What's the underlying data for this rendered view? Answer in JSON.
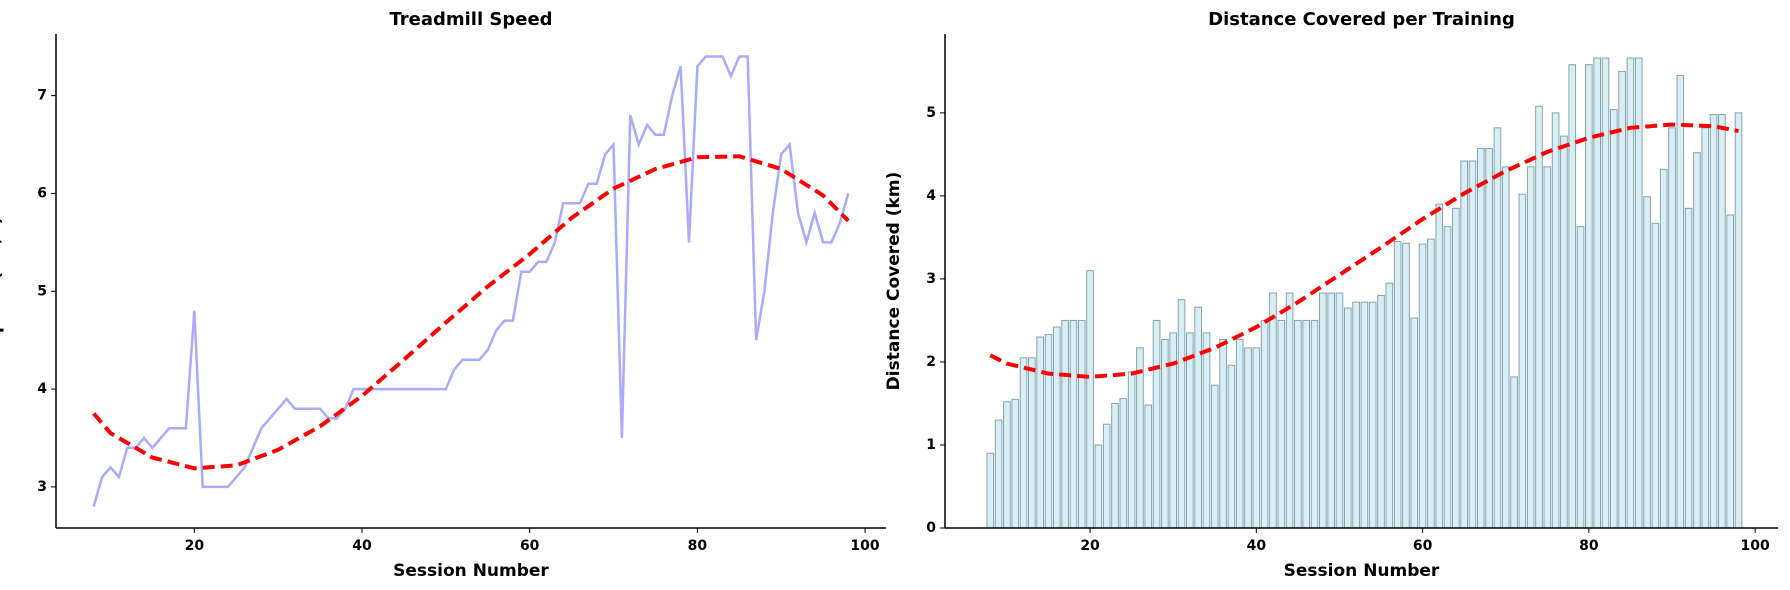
{
  "chart_data": [
    {
      "type": "line",
      "title": "Treadmill Speed",
      "xlabel": "Session Number",
      "ylabel": "Speed (km/h)",
      "x": [
        8,
        9,
        10,
        11,
        12,
        13,
        14,
        15,
        16,
        17,
        18,
        19,
        20,
        21,
        22,
        23,
        24,
        25,
        26,
        27,
        28,
        29,
        30,
        31,
        32,
        33,
        34,
        35,
        36,
        37,
        38,
        39,
        40,
        41,
        42,
        43,
        44,
        45,
        46,
        47,
        48,
        49,
        50,
        51,
        52,
        53,
        54,
        55,
        56,
        57,
        58,
        59,
        60,
        61,
        62,
        63,
        64,
        65,
        66,
        67,
        68,
        69,
        70,
        71,
        72,
        73,
        74,
        75,
        76,
        77,
        78,
        79,
        80,
        81,
        82,
        83,
        84,
        85,
        86,
        87,
        88,
        89,
        90,
        91,
        92,
        93,
        94,
        95,
        96,
        97,
        98
      ],
      "series": [
        {
          "color": "#aaaaff",
          "values": [
            2.8,
            3.1,
            3.2,
            3.1,
            3.4,
            3.4,
            3.5,
            3.4,
            3.5,
            3.6,
            3.6,
            3.6,
            4.8,
            3.0,
            3.0,
            3.0,
            3.0,
            3.1,
            3.2,
            3.4,
            3.6,
            3.7,
            3.8,
            3.9,
            3.8,
            3.8,
            3.8,
            3.8,
            3.7,
            3.7,
            3.8,
            4.0,
            4.0,
            4.0,
            4.0,
            4.0,
            4.0,
            4.0,
            4.0,
            4.0,
            4.0,
            4.0,
            4.0,
            4.2,
            4.3,
            4.3,
            4.3,
            4.4,
            4.6,
            4.7,
            4.7,
            5.2,
            5.2,
            5.3,
            5.3,
            5.5,
            5.9,
            5.9,
            5.9,
            6.1,
            6.1,
            6.4,
            6.5,
            3.5,
            6.8,
            6.5,
            6.7,
            6.6,
            6.6,
            7.0,
            7.3,
            5.5,
            7.3,
            7.4,
            7.4,
            7.4,
            7.2,
            7.4,
            7.4,
            4.5,
            5.0,
            5.8,
            6.4,
            6.5,
            5.8,
            5.5,
            5.8,
            5.5,
            5.5,
            5.7,
            6.0
          ]
        }
      ],
      "trend": {
        "color": "#ff0000",
        "x": [
          8,
          10,
          15,
          20,
          25,
          30,
          35,
          40,
          45,
          50,
          55,
          60,
          65,
          70,
          75,
          80,
          85,
          90,
          95,
          98
        ],
        "values": [
          3.75,
          3.55,
          3.3,
          3.19,
          3.22,
          3.38,
          3.62,
          3.93,
          4.3,
          4.68,
          5.05,
          5.38,
          5.75,
          6.05,
          6.25,
          6.37,
          6.38,
          6.25,
          5.98,
          5.72
        ]
      },
      "xlim": [
        3.5,
        102.5
      ],
      "ylim": [
        2.58,
        7.63
      ],
      "xticks": [
        20,
        40,
        60,
        80,
        100
      ],
      "yticks": [
        3,
        4,
        5,
        6,
        7
      ]
    },
    {
      "type": "bar",
      "title": "Distance Covered per Training",
      "xlabel": "Session Number",
      "ylabel": "Distance Covered (km)",
      "x": [
        8,
        9,
        10,
        11,
        12,
        13,
        14,
        15,
        16,
        17,
        18,
        19,
        20,
        21,
        22,
        23,
        24,
        25,
        26,
        27,
        28,
        29,
        30,
        31,
        32,
        33,
        34,
        35,
        36,
        37,
        38,
        39,
        40,
        41,
        42,
        43,
        44,
        45,
        46,
        47,
        48,
        49,
        50,
        51,
        52,
        53,
        54,
        55,
        56,
        57,
        58,
        59,
        60,
        61,
        62,
        63,
        64,
        65,
        66,
        67,
        68,
        69,
        70,
        71,
        72,
        73,
        74,
        75,
        76,
        77,
        78,
        79,
        80,
        81,
        82,
        83,
        84,
        85,
        86,
        87,
        88,
        89,
        90,
        91,
        92,
        93,
        94,
        95,
        96,
        97,
        98
      ],
      "values": [
        0.9,
        1.3,
        1.52,
        1.55,
        2.05,
        2.05,
        2.3,
        2.33,
        2.42,
        2.5,
        2.5,
        2.5,
        3.1,
        1.0,
        1.25,
        1.5,
        1.56,
        1.88,
        2.17,
        1.48,
        2.5,
        2.27,
        2.35,
        2.75,
        2.35,
        2.66,
        2.35,
        1.72,
        2.27,
        1.96,
        2.27,
        2.17,
        2.17,
        2.5,
        2.83,
        2.5,
        2.83,
        2.5,
        2.5,
        2.5,
        2.83,
        2.83,
        2.83,
        2.65,
        2.72,
        2.72,
        2.72,
        2.8,
        2.95,
        3.45,
        3.43,
        2.53,
        3.42,
        3.48,
        3.9,
        3.63,
        3.85,
        4.42,
        4.42,
        4.57,
        4.57,
        4.82,
        4.35,
        1.82,
        4.02,
        4.35,
        5.08,
        4.35,
        5.0,
        4.72,
        5.58,
        3.63,
        5.58,
        5.66,
        5.66,
        5.04,
        5.5,
        5.66,
        5.66,
        3.99,
        3.67,
        4.32,
        4.82,
        5.45,
        3.85,
        4.52,
        4.82,
        4.98,
        4.98,
        3.77,
        5.0
      ],
      "color": "#d6eef4",
      "edgecolor": "#8aa3ab",
      "trend": {
        "color": "#ff0000",
        "x": [
          8,
          10,
          15,
          20,
          25,
          30,
          35,
          40,
          45,
          50,
          55,
          60,
          65,
          70,
          75,
          80,
          85,
          90,
          95,
          98
        ],
        "values": [
          2.08,
          1.98,
          1.86,
          1.82,
          1.86,
          1.98,
          2.17,
          2.42,
          2.72,
          3.05,
          3.38,
          3.72,
          4.03,
          4.3,
          4.53,
          4.7,
          4.82,
          4.86,
          4.84,
          4.78
        ]
      },
      "xlim": [
        2.55,
        102.75
      ],
      "ylim": [
        0,
        5.95
      ],
      "xticks": [
        20,
        40,
        60,
        80,
        100
      ],
      "yticks": [
        0,
        1,
        2,
        3,
        4,
        5
      ]
    }
  ]
}
